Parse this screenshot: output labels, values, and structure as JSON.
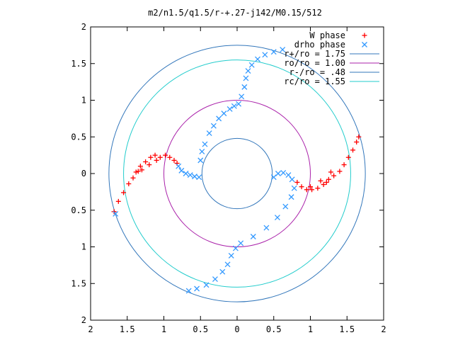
{
  "chart_data": {
    "type": "scatter",
    "title": "m2/n1.5/q1.5/r-+.27-j142/M0.15/512",
    "xlabel": "",
    "ylabel": "",
    "xlim": [
      -2,
      2
    ],
    "ylim": [
      -2,
      2
    ],
    "grid": false,
    "legend_position": "top-right",
    "x_tick_values": [
      -2,
      -1.5,
      -1,
      -0.5,
      0,
      0.5,
      1,
      1.5,
      2
    ],
    "x_tick_labels": [
      "2",
      "1.5",
      "1",
      "0.5",
      "0",
      "0.5",
      "1",
      "1.5",
      "2"
    ],
    "y_tick_values": [
      2,
      1.5,
      1,
      0.5,
      0,
      -0.5,
      -1,
      -1.5,
      -2
    ],
    "y_tick_labels": [
      "2",
      "1.5",
      "1",
      "0.5",
      "0",
      "0.5",
      "1",
      "1.5",
      "2"
    ],
    "series": [
      {
        "name": "W phase",
        "kind": "points",
        "marker": "plus",
        "color": "#ff0000",
        "points": [
          [
            -1.68,
            -0.52
          ],
          [
            -1.62,
            -0.38
          ],
          [
            -1.55,
            -0.26
          ],
          [
            -1.48,
            -0.14
          ],
          [
            -1.42,
            -0.06
          ],
          [
            -1.38,
            0.02
          ],
          [
            -1.32,
            0.1
          ],
          [
            -1.25,
            0.16
          ],
          [
            -1.18,
            0.22
          ],
          [
            -1.12,
            0.25
          ],
          [
            -1.05,
            0.22
          ],
          [
            -0.98,
            0.25
          ],
          [
            -0.92,
            0.22
          ],
          [
            -0.86,
            0.18
          ],
          [
            -0.82,
            0.14
          ],
          [
            -1.3,
            0.05
          ],
          [
            -1.2,
            0.12
          ],
          [
            -1.35,
            0.03
          ],
          [
            -1.1,
            0.18
          ],
          [
            0.82,
            -0.12
          ],
          [
            0.88,
            -0.18
          ],
          [
            0.95,
            -0.22
          ],
          [
            1.02,
            -0.22
          ],
          [
            1.1,
            -0.2
          ],
          [
            1.18,
            -0.15
          ],
          [
            1.25,
            -0.08
          ],
          [
            1.32,
            -0.03
          ],
          [
            1.4,
            0.03
          ],
          [
            1.46,
            0.12
          ],
          [
            1.52,
            0.22
          ],
          [
            1.58,
            0.32
          ],
          [
            1.63,
            0.43
          ],
          [
            1.66,
            0.5
          ],
          [
            1.0,
            -0.18
          ],
          [
            1.14,
            -0.1
          ],
          [
            1.22,
            -0.12
          ],
          [
            1.28,
            0.02
          ]
        ]
      },
      {
        "name": "drho phase",
        "kind": "points",
        "marker": "cross",
        "color": "#3399ff",
        "points": [
          [
            -0.8,
            0.1
          ],
          [
            -0.76,
            0.04
          ],
          [
            -0.7,
            0.0
          ],
          [
            -0.64,
            -0.02
          ],
          [
            -0.58,
            -0.04
          ],
          [
            -0.52,
            -0.05
          ],
          [
            -0.5,
            0.18
          ],
          [
            -0.48,
            0.3
          ],
          [
            -0.44,
            0.4
          ],
          [
            -0.38,
            0.55
          ],
          [
            -0.32,
            0.65
          ],
          [
            -0.25,
            0.75
          ],
          [
            -0.18,
            0.82
          ],
          [
            -0.1,
            0.88
          ],
          [
            -0.04,
            0.92
          ],
          [
            0.02,
            0.95
          ],
          [
            0.06,
            1.05
          ],
          [
            0.1,
            1.18
          ],
          [
            0.12,
            1.3
          ],
          [
            0.15,
            1.4
          ],
          [
            0.2,
            1.48
          ],
          [
            0.28,
            1.56
          ],
          [
            0.38,
            1.62
          ],
          [
            0.5,
            1.66
          ],
          [
            0.62,
            1.69
          ],
          [
            0.5,
            -0.05
          ],
          [
            0.56,
            0.0
          ],
          [
            0.63,
            0.01
          ],
          [
            0.7,
            -0.02
          ],
          [
            0.75,
            -0.08
          ],
          [
            0.78,
            -0.2
          ],
          [
            0.74,
            -0.32
          ],
          [
            0.66,
            -0.45
          ],
          [
            0.55,
            -0.6
          ],
          [
            0.4,
            -0.74
          ],
          [
            0.22,
            -0.86
          ],
          [
            0.05,
            -0.95
          ],
          [
            -0.02,
            -1.02
          ],
          [
            -0.08,
            -1.12
          ],
          [
            -0.13,
            -1.24
          ],
          [
            -0.2,
            -1.34
          ],
          [
            -0.3,
            -1.44
          ],
          [
            -0.42,
            -1.52
          ],
          [
            -0.55,
            -1.57
          ],
          [
            -0.66,
            -1.6
          ],
          [
            -1.66,
            -0.55
          ]
        ]
      },
      {
        "name": "r+/ro = 1.75",
        "kind": "circle",
        "radius": 1.75,
        "color": "#3377bb"
      },
      {
        "name": "ro/ro = 1.00",
        "kind": "circle",
        "radius": 1.0,
        "color": "#aa22aa"
      },
      {
        "name": "r-/ro = .48",
        "kind": "circle",
        "radius": 0.48,
        "color": "#3377bb"
      },
      {
        "name": "rc/ro = 1.55",
        "kind": "circle",
        "radius": 1.55,
        "color": "#22cccc"
      }
    ]
  }
}
